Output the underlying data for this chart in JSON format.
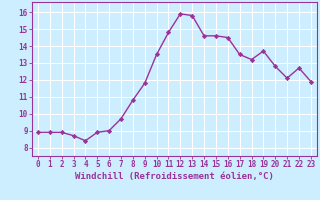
{
  "x": [
    0,
    1,
    2,
    3,
    4,
    5,
    6,
    7,
    8,
    9,
    10,
    11,
    12,
    13,
    14,
    15,
    16,
    17,
    18,
    19,
    20,
    21,
    22,
    23
  ],
  "y": [
    8.9,
    8.9,
    8.9,
    8.7,
    8.4,
    8.9,
    9.0,
    9.7,
    10.8,
    11.8,
    13.5,
    14.8,
    15.9,
    15.8,
    14.6,
    14.6,
    14.5,
    13.5,
    13.2,
    13.7,
    12.8,
    12.1,
    12.7,
    11.9
  ],
  "line_color": "#993399",
  "marker": "D",
  "marker_size": 2.2,
  "linewidth": 1.0,
  "xlabel": "Windchill (Refroidissement éolien,°C)",
  "xlabel_fontsize": 6.5,
  "xlim": [
    -0.5,
    23.5
  ],
  "ylim": [
    7.5,
    16.6
  ],
  "yticks": [
    8,
    9,
    10,
    11,
    12,
    13,
    14,
    15,
    16
  ],
  "xticks": [
    0,
    1,
    2,
    3,
    4,
    5,
    6,
    7,
    8,
    9,
    10,
    11,
    12,
    13,
    14,
    15,
    16,
    17,
    18,
    19,
    20,
    21,
    22,
    23
  ],
  "background_color": "#cceeff",
  "grid_color": "#ffffff",
  "tick_color": "#993399",
  "tick_fontsize": 5.5,
  "spine_color": "#993399"
}
